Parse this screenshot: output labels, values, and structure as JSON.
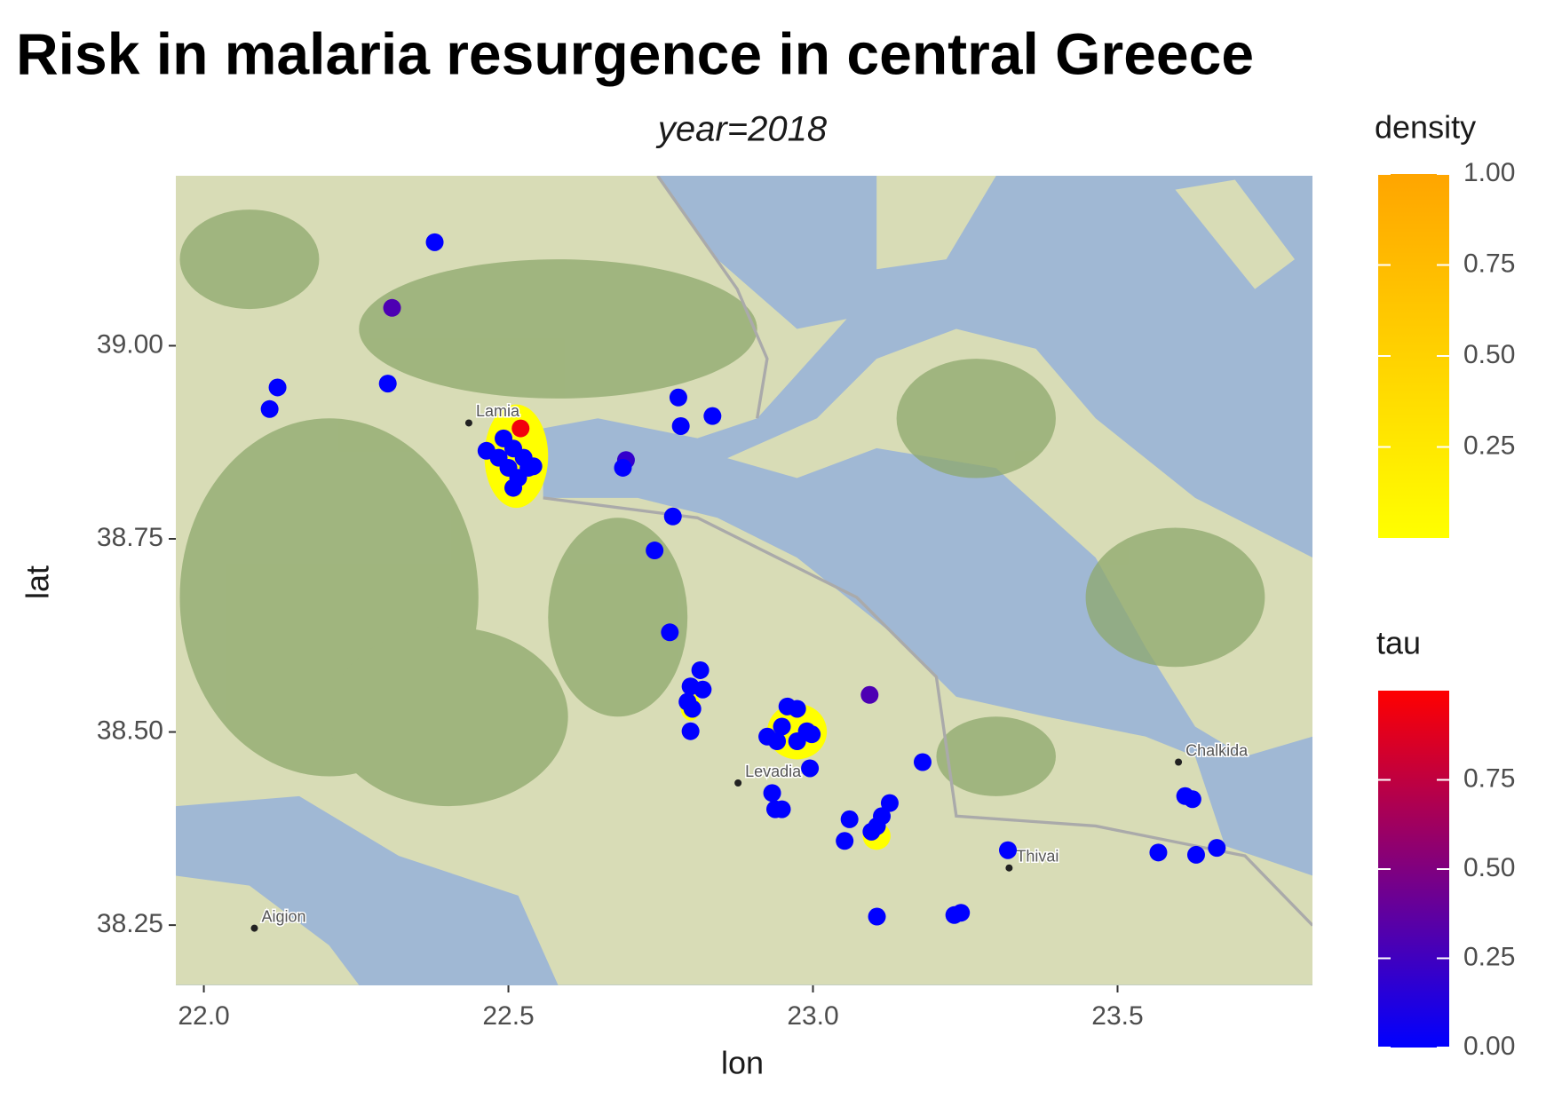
{
  "chart_data": {
    "type": "scatter",
    "title": "Risk in malaria resurgence in central Greece",
    "subtitle": "year=2018",
    "x_label": "lon",
    "y_label": "lat",
    "xlim": [
      21.954,
      23.82
    ],
    "ylim": [
      38.172,
      39.22
    ],
    "xticks": [
      {
        "value": 22,
        "label": "22.0"
      },
      22.5,
      {
        "value": 23,
        "label": "23.0"
      },
      23.5
    ],
    "yticks": [
      38.25,
      {
        "value": 38.5,
        "label": "38.50"
      },
      38.75,
      {
        "value": 39,
        "label": "39.00"
      }
    ],
    "x": [
      22.379,
      22.309,
      22.302,
      22.121,
      22.108,
      22.779,
      22.835,
      22.783,
      22.492,
      22.508,
      22.525,
      22.5,
      22.516,
      22.533,
      22.484,
      22.464,
      22.541,
      22.508,
      22.52,
      22.693,
      22.688,
      22.77,
      22.74,
      22.765,
      22.815,
      22.799,
      22.819,
      22.794,
      22.802,
      22.799,
      23.093,
      22.958,
      22.974,
      22.949,
      22.99,
      22.925,
      22.974,
      22.998,
      22.941,
      22.995,
      22.933,
      22.938,
      22.949,
      23.06,
      23.052,
      23.105,
      23.113,
      23.126,
      23.096,
      23.18,
      23.32,
      23.567,
      23.611,
      23.623,
      23.629,
      23.663,
      23.105,
      23.232,
      23.243
    ],
    "y": [
      39.134,
      39.049,
      38.951,
      38.946,
      38.918,
      38.933,
      38.909,
      38.896,
      38.88,
      38.867,
      38.855,
      38.842,
      38.829,
      38.842,
      38.855,
      38.864,
      38.844,
      38.816,
      38.893,
      38.852,
      38.842,
      38.779,
      38.735,
      38.629,
      38.58,
      38.559,
      38.555,
      38.539,
      38.53,
      38.501,
      38.548,
      38.533,
      38.53,
      38.507,
      38.501,
      38.494,
      38.488,
      38.497,
      38.488,
      38.453,
      38.421,
      38.4,
      38.4,
      38.387,
      38.359,
      38.378,
      38.391,
      38.408,
      38.371,
      38.461,
      38.347,
      38.344,
      38.417,
      38.413,
      38.341,
      38.35,
      38.261,
      38.263,
      38.266
    ],
    "values": [
      0,
      0.3,
      0,
      0,
      0,
      0,
      0,
      0,
      0,
      0,
      0,
      0,
      0,
      0,
      0,
      0,
      0,
      0,
      0.95,
      0.2,
      0,
      0,
      0,
      0,
      0,
      0,
      0,
      0,
      0,
      0,
      0.3,
      0,
      0,
      0,
      0,
      0,
      0,
      0,
      0,
      0,
      0,
      0,
      0,
      0,
      0,
      0,
      0,
      0,
      0,
      0,
      0,
      0,
      0,
      0,
      0,
      0,
      0,
      0,
      0
    ],
    "color_scale": {
      "title": "tau",
      "lim": [
        0,
        1
      ],
      "colors": [
        "#0000ff",
        "#ff0000"
      ],
      "ticks": [
        {
          "value": 0,
          "label": "0.00"
        },
        0.25,
        {
          "value": 0.5,
          "label": "0.50"
        },
        0.75
      ]
    },
    "density_scale": {
      "title": "density",
      "lim": [
        0,
        1
      ],
      "colors": [
        "#ffff00",
        "#ffa500"
      ],
      "ticks": [
        0.25,
        {
          "value": 0.5,
          "label": "0.50"
        },
        0.75,
        {
          "value": 1,
          "label": "1.00"
        }
      ]
    },
    "annotations": [
      {
        "text": "Lamia",
        "x": 22.435,
        "y": 38.9
      },
      {
        "text": "Levadia",
        "x": 22.877,
        "y": 38.434
      },
      {
        "text": "Chalkida",
        "x": 23.6,
        "y": 38.461
      },
      {
        "text": "Thivai",
        "x": 23.322,
        "y": 38.324
      },
      {
        "text": "Aigion",
        "x": 22.083,
        "y": 38.246
      }
    ]
  }
}
